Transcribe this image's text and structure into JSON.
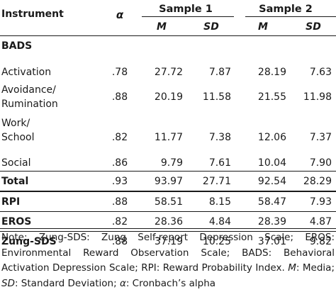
{
  "header": {
    "instrument": "Instrument",
    "alpha": "α",
    "sample1": "Sample 1",
    "sample2": "Sample 2",
    "m": "M",
    "sd": "SD"
  },
  "section_label": "BADS",
  "rows": {
    "activation": {
      "label": "Activation",
      "alpha": ".78",
      "m1": "27.72",
      "sd1": "7.87",
      "m2": "28.19",
      "sd2": "7.63"
    },
    "avoidance": {
      "label_line1": "Avoidance/",
      "label_line2": "Rumination",
      "alpha": ".88",
      "m1": "20.19",
      "sd1": "11.58",
      "m2": "21.55",
      "sd2": "11.98"
    },
    "work": {
      "label_line1": "Work/",
      "label_line2": "School",
      "alpha": ".82",
      "m1": "11.77",
      "sd1": "7.38",
      "m2": "12.06",
      "sd2": "7.37"
    },
    "social": {
      "label": "Social",
      "alpha": ".86",
      "m1": "9.79",
      "sd1": "7.61",
      "m2": "10.04",
      "sd2": "7.90"
    },
    "total": {
      "label": "Total",
      "alpha": ".93",
      "m1": "93.97",
      "sd1": "27.71",
      "m2": "92.54",
      "sd2": "28.29"
    },
    "rpi": {
      "label": "RPI",
      "alpha": ".88",
      "m1": "58.51",
      "sd1": "8.15",
      "m2": "58.47",
      "sd2": "7.93"
    },
    "eros": {
      "label": "EROS",
      "alpha": ".82",
      "m1": "28.36",
      "sd1": "4.84",
      "m2": "28.39",
      "sd2": "4.87"
    },
    "zung": {
      "label": "Zung-SDS",
      "alpha": ".88",
      "m1": "37.19",
      "sd1": "10.25",
      "m2": "37.01",
      "sd2": "9.82"
    }
  },
  "note": {
    "p1": "Note: Zung-SDS: Zung Self-report Depression Scale; EROS: Environmental Reward Observation Scale; BADS: Behavioral Activation Depression Scale; RPI: Reward Probability Index. ",
    "m_symbol": "M",
    "p2": ": Media; ",
    "sd_symbol": "SD",
    "p3": ": Standard Deviation; ",
    "alpha_symbol": "α",
    "p4": ": Cronbach’s alpha"
  }
}
